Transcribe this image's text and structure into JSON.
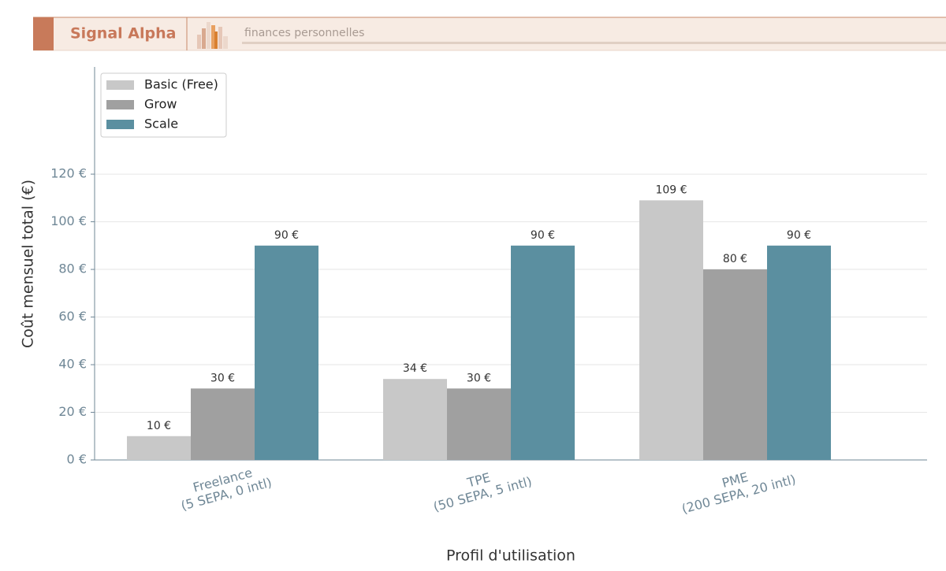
{
  "header": {
    "brand": "Signal Alpha",
    "subtitle": "finances personnelles"
  },
  "chart_data": {
    "type": "bar",
    "x_label": "Profil d'utilisation",
    "y_label": "Coût mensuel total (€)",
    "categories": [
      "Freelance\n(5 SEPA, 0 intl)",
      "TPE\n(50 SEPA, 5 intl)",
      "PME\n(200 SEPA, 20 intl)"
    ],
    "series": [
      {
        "name": "Basic (Free)",
        "color": "#c8c8c8",
        "values": [
          10,
          34,
          109
        ],
        "value_labels": [
          "10 €",
          "34 €",
          "109 €"
        ]
      },
      {
        "name": "Grow",
        "color": "#a0a0a0",
        "values": [
          30,
          30,
          80
        ],
        "value_labels": [
          "30 €",
          "30 €",
          "80 €"
        ]
      },
      {
        "name": "Scale",
        "color": "#5b8fa0",
        "values": [
          90,
          90,
          90
        ],
        "value_labels": [
          "90 €",
          "90 €",
          "90 €"
        ]
      }
    ],
    "ylim": [
      0,
      165
    ],
    "yticks": [
      {
        "value": 0,
        "label": "0 €"
      },
      {
        "value": 20,
        "label": "20 €"
      },
      {
        "value": 40,
        "label": "40 €"
      },
      {
        "value": 60,
        "label": "60 €"
      },
      {
        "value": 80,
        "label": "80 €"
      },
      {
        "value": 100,
        "label": "100 €"
      },
      {
        "value": 120,
        "label": "120 €"
      }
    ],
    "grid": true,
    "legend": "upper-left"
  }
}
